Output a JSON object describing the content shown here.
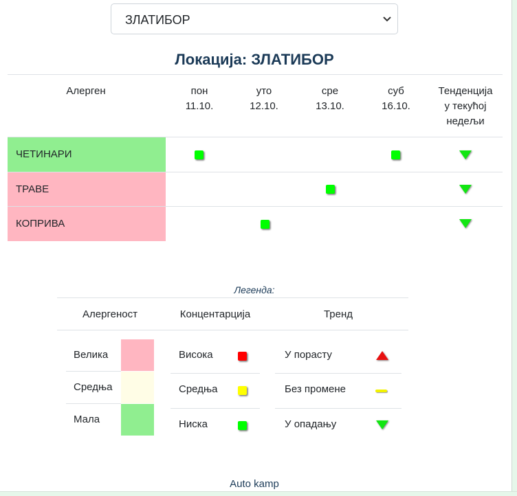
{
  "location_select": {
    "value": "ЗЛАТИБОР"
  },
  "title": "Локација: ЗЛАТИБОР",
  "table": {
    "header_allergen": "Алерген",
    "days": [
      {
        "name": "пон",
        "date": "11.10."
      },
      {
        "name": "уто",
        "date": "12.10."
      },
      {
        "name": "сре",
        "date": "13.10."
      },
      {
        "name": "суб",
        "date": "16.10."
      }
    ],
    "trend_header": [
      "Тенденција",
      "у текућој",
      "недељи"
    ],
    "rows": [
      {
        "label": "ЧЕТИНАРИ",
        "level_color": "#90ee90",
        "cells": [
          "low",
          "",
          "",
          "low"
        ],
        "trend": "down"
      },
      {
        "label": "ТРАВЕ",
        "level_color": "#ffb6c1",
        "cells": [
          "",
          "",
          "low",
          ""
        ],
        "trend": "down"
      },
      {
        "label": "КОПРИВА",
        "level_color": "#ffb6c1",
        "cells": [
          "",
          "low",
          "",
          ""
        ],
        "trend": "down"
      }
    ]
  },
  "legend": {
    "title": "Легенда:",
    "allergenicity": {
      "header": "Алергеност",
      "items": [
        {
          "label": "Велика",
          "color": "#ffb6c1"
        },
        {
          "label": "Средња",
          "color": "#fffde6"
        },
        {
          "label": "Мала",
          "color": "#90ee90"
        }
      ]
    },
    "concentration": {
      "header": "Концентарција",
      "items": [
        {
          "label": "Висока",
          "color": "#ff0000"
        },
        {
          "label": "Средња",
          "color": "#ffff00"
        },
        {
          "label": "Ниска",
          "color": "#00ff00"
        }
      ]
    },
    "trend": {
      "header": "Тренд",
      "items": [
        {
          "label": "У порасту",
          "icon": "triangle-up-icon"
        },
        {
          "label": "Без промене",
          "icon": "dash-icon"
        },
        {
          "label": "У опадању",
          "icon": "triangle-down-icon"
        }
      ]
    }
  },
  "footer": "Auto kamp"
}
